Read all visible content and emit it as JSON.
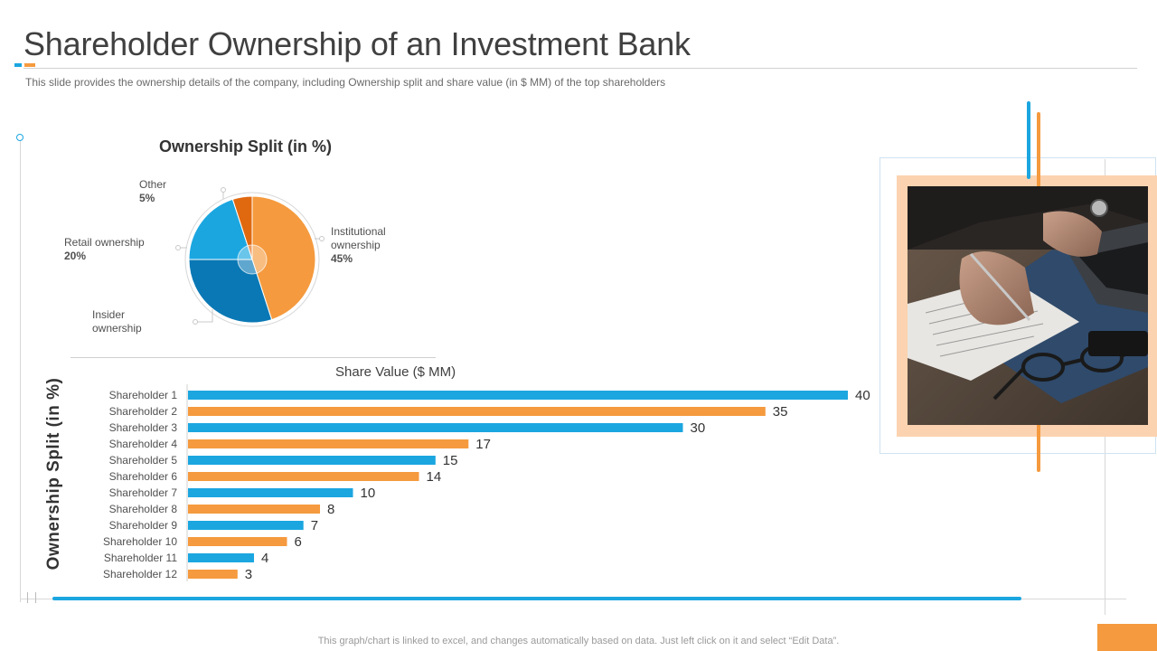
{
  "slide": {
    "title": "Shareholder Ownership of an Investment Bank",
    "subtitle": "This slide provides  the ownership details of the company,  including Ownership  split and share value  (in $ MM)  of the top shareholders",
    "footnote": "This graph/chart is linked to excel,  and changes automatically based on data. Just left click on it and select “Edit Data”.",
    "y_axis_label": "Ownership Split (in %)"
  },
  "colors": {
    "blue": "#1ba6e0",
    "orange": "#f59a3e",
    "dark_blue": "#0a78b5",
    "dark_orange": "#e0680f",
    "photo_frame": "#fbd3b0"
  },
  "pie_labels": {
    "other": {
      "name": "Other",
      "pct": "5%"
    },
    "retail": {
      "name": "Retail ownership",
      "pct": "20%"
    },
    "institutional": {
      "name1": "Institutional",
      "name2": "ownership",
      "pct": "45%"
    },
    "insider": {
      "name1": "Insider",
      "name2": "ownership"
    }
  },
  "chart_data": [
    {
      "type": "pie",
      "title": "Ownership Split (in %)",
      "slices": [
        {
          "label": "Institutional ownership",
          "value": 45,
          "color": "#f59a3e"
        },
        {
          "label": "Insider ownership",
          "value": 30,
          "color": "#0a78b5"
        },
        {
          "label": "Retail ownership",
          "value": 20,
          "color": "#1ba6e0"
        },
        {
          "label": "Other",
          "value": 5,
          "color": "#e0680f"
        }
      ]
    },
    {
      "type": "bar",
      "orientation": "horizontal",
      "title": "Share Value ($ MM)",
      "categories": [
        "Shareholder 1",
        "Shareholder 2",
        "Shareholder 3",
        "Shareholder 4",
        "Shareholder 5",
        "Shareholder 6",
        "Shareholder 7",
        "Shareholder 8",
        "Shareholder 9",
        "Shareholder 10",
        "Shareholder 11",
        "Shareholder 12"
      ],
      "values": [
        40,
        35,
        30,
        17,
        15,
        14,
        10,
        8,
        7,
        6,
        4,
        3
      ],
      "colors": [
        "#1ba6e0",
        "#f59a3e",
        "#1ba6e0",
        "#f59a3e",
        "#1ba6e0",
        "#f59a3e",
        "#1ba6e0",
        "#f59a3e",
        "#1ba6e0",
        "#f59a3e",
        "#1ba6e0",
        "#f59a3e"
      ],
      "xlim": [
        0,
        40
      ],
      "data_labels": true,
      "grid": false
    }
  ]
}
